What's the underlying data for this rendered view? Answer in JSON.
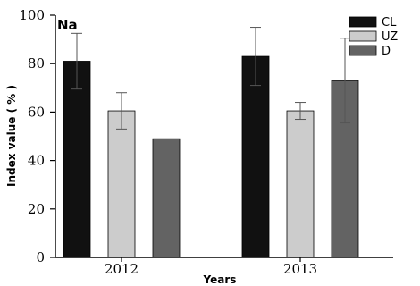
{
  "chart_data": {
    "type": "bar",
    "panel_label": "Na",
    "categories": [
      "2012",
      "2013"
    ],
    "xlabel": "Years",
    "ylabel": "Index value ( % )",
    "ylim": [
      0,
      100
    ],
    "yticks": [
      "0",
      "20",
      "40",
      "60",
      "80",
      "100"
    ],
    "grid": false,
    "legend_position": "top-right",
    "series": [
      {
        "name": "CL",
        "color": "#111111",
        "values": [
          81,
          83
        ],
        "error": [
          11.5,
          12
        ]
      },
      {
        "name": "UZ",
        "color": "#cccccc",
        "values": [
          60.5,
          60.5
        ],
        "error": [
          7.5,
          3.5
        ]
      },
      {
        "name": "D",
        "color": "#636363",
        "values": [
          49,
          73
        ],
        "error": [
          0,
          17.5
        ]
      }
    ]
  }
}
